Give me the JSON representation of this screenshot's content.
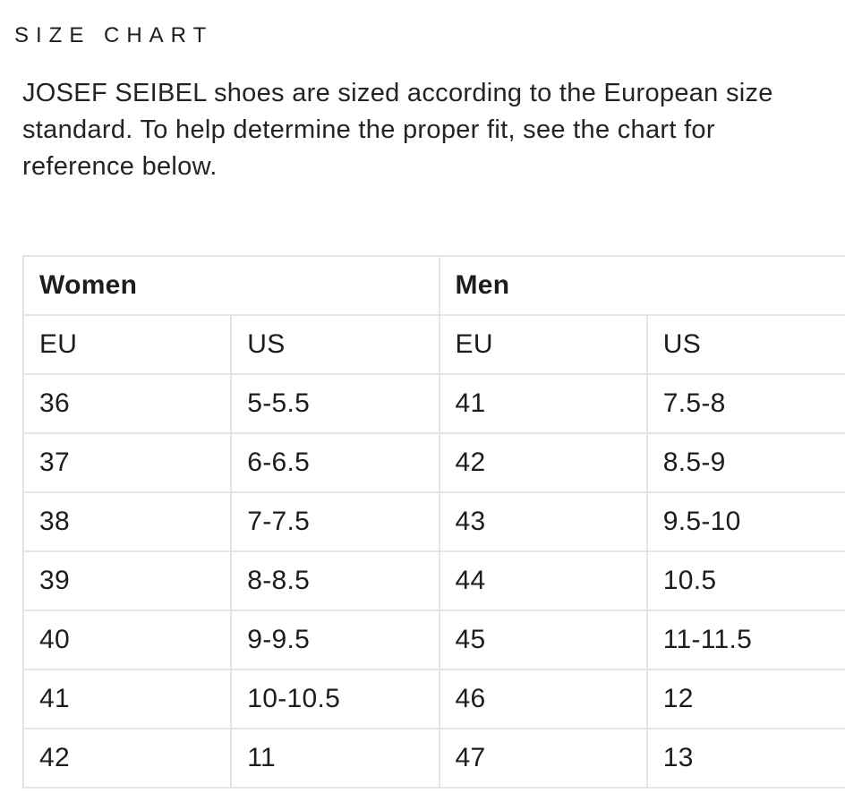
{
  "page": {
    "title": "S I Z E   C H A R T",
    "title_plain": "SIZE CHART",
    "intro_lines": [
      "JOSEF SEIBEL shoes are sized according to the European size",
      "standard. To help determine the proper fit, see the chart for",
      "reference below."
    ],
    "intro_full": "JOSEF SEIBEL shoes are sized according to the European size standard. To help determine the proper fit, see the chart for reference below."
  },
  "size_table": {
    "groups": {
      "women": "Women",
      "men": "Men"
    },
    "columns": [
      "EU",
      "US",
      "EU",
      "US"
    ],
    "rows": [
      [
        "36",
        "5-5.5",
        "41",
        "7.5-8"
      ],
      [
        "37",
        "6-6.5",
        "42",
        "8.5-9"
      ],
      [
        "38",
        "7-7.5",
        "43",
        "9.5-10"
      ],
      [
        "39",
        "8-8.5",
        "44",
        "10.5"
      ],
      [
        "40",
        "9-9.5",
        "45",
        "11-11.5"
      ],
      [
        "41",
        "10-10.5",
        "46",
        "12"
      ],
      [
        "42",
        "11",
        "47",
        "13"
      ]
    ]
  },
  "colors": {
    "background": "#ffffff",
    "table_border": "#e8e5dd",
    "heading_text": "#1c1c1c",
    "body_text": "#242424"
  }
}
